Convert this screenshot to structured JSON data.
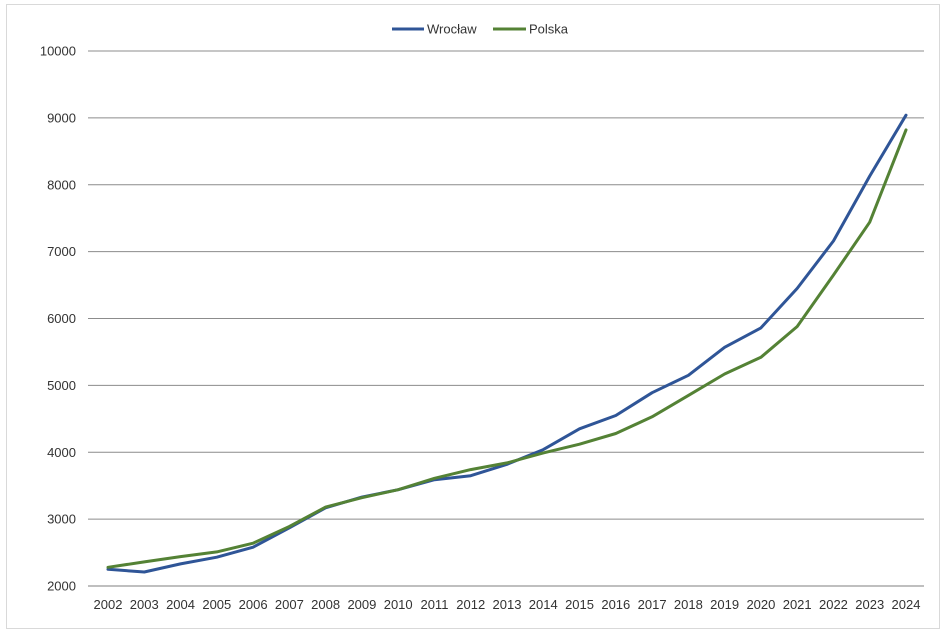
{
  "chart_data": {
    "type": "line",
    "categories": [
      "2002",
      "2003",
      "2004",
      "2005",
      "2006",
      "2007",
      "2008",
      "2009",
      "2010",
      "2011",
      "2012",
      "2013",
      "2014",
      "2015",
      "2016",
      "2017",
      "2018",
      "2019",
      "2020",
      "2021",
      "2022",
      "2023",
      "2024"
    ],
    "series": [
      {
        "name": "Wrocław",
        "color": "#2f5597",
        "values": [
          2250,
          2210,
          2330,
          2430,
          2580,
          2870,
          3170,
          3330,
          3440,
          3590,
          3650,
          3820,
          4040,
          4350,
          4550,
          4890,
          5150,
          5570,
          5860,
          6450,
          7160,
          8130,
          9040
        ]
      },
      {
        "name": "Polska",
        "color": "#548235",
        "values": [
          2280,
          2360,
          2440,
          2510,
          2640,
          2890,
          3180,
          3320,
          3440,
          3610,
          3740,
          3840,
          3990,
          4120,
          4280,
          4530,
          4850,
          5170,
          5420,
          5880,
          6650,
          7440,
          8820
        ]
      }
    ],
    "yticks": [
      2000,
      3000,
      4000,
      5000,
      6000,
      7000,
      8000,
      9000,
      10000
    ],
    "ylim": [
      2000,
      10000
    ],
    "title": "",
    "xlabel": "",
    "ylabel": "",
    "grid": true,
    "legend": "top-center"
  }
}
